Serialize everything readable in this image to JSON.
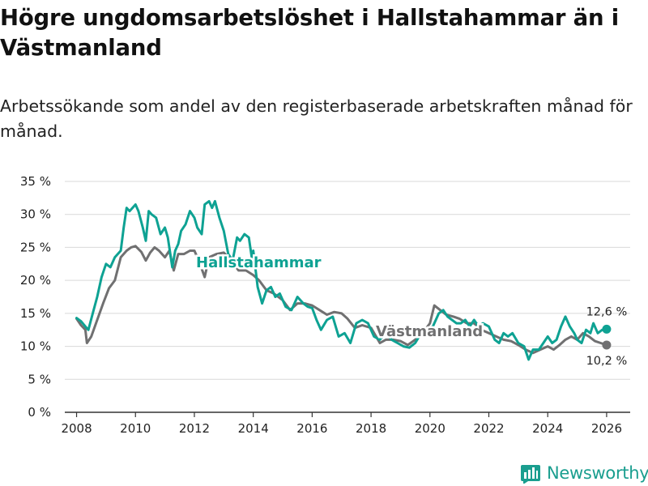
{
  "title": "Högre ungdomsarbetslöshet i Hallstahammar än i Västmanland",
  "subtitle": "Arbetssökande som andel av den registerbaserade arbetskraften månad för månad.",
  "logo": {
    "text": "Newsworthy",
    "icon": "bar-chart-logo-icon"
  },
  "colors": {
    "hallstahammar": "#0ea293",
    "vastmanland": "#707071",
    "grid": "#d9d9d9",
    "axis": "#333333"
  },
  "chart_data": {
    "type": "line",
    "title": "Högre ungdomsarbetslöshet i Hallstahammar än i Västmanland",
    "xlabel": "",
    "ylabel": "",
    "xlim": [
      2007.6,
      2026.8
    ],
    "ylim": [
      0,
      35
    ],
    "x_ticks": [
      2008,
      2010,
      2012,
      2014,
      2016,
      2018,
      2020,
      2022,
      2024,
      2026
    ],
    "x_tick_labels": [
      "2008",
      "2010",
      "2012",
      "2014",
      "2016",
      "2018",
      "2020",
      "2022",
      "2024",
      "2026"
    ],
    "y_ticks": [
      0,
      5,
      10,
      15,
      20,
      25,
      30,
      35
    ],
    "y_tick_labels": [
      "0 %",
      "5 %",
      "10 %",
      "15 %",
      "20 %",
      "25 %",
      "30 %",
      "35 %"
    ],
    "grid": true,
    "series": [
      {
        "name": "Västmanland",
        "label": "Västmanland",
        "end_label": "10,2 %",
        "x": [
          2008.0,
          2008.15,
          2008.3,
          2008.35,
          2008.5,
          2008.7,
          2008.9,
          2009.1,
          2009.3,
          2009.5,
          2009.7,
          2009.85,
          2010.0,
          2010.2,
          2010.35,
          2010.5,
          2010.65,
          2010.8,
          2011.0,
          2011.15,
          2011.3,
          2011.45,
          2011.65,
          2011.85,
          2012.0,
          2012.15,
          2012.35,
          2012.5,
          2012.75,
          2013.0,
          2013.25,
          2013.5,
          2013.75,
          2014.0,
          2014.2,
          2014.45,
          2014.7,
          2015.0,
          2015.25,
          2015.5,
          2015.75,
          2016.0,
          2016.25,
          2016.5,
          2016.75,
          2017.0,
          2017.2,
          2017.45,
          2017.7,
          2018.0,
          2018.3,
          2018.5,
          2018.75,
          2019.0,
          2019.25,
          2019.5,
          2019.75,
          2020.0,
          2020.15,
          2020.35,
          2020.55,
          2020.8,
          2021.0,
          2021.25,
          2021.5,
          2021.75,
          2022.0,
          2022.25,
          2022.5,
          2022.75,
          2023.0,
          2023.25,
          2023.5,
          2023.75,
          2024.0,
          2024.2,
          2024.4,
          2024.6,
          2024.8,
          2025.0,
          2025.2,
          2025.4,
          2025.6,
          2025.8,
          2026.0
        ],
        "values": [
          14.2,
          13.2,
          12.5,
          10.5,
          11.5,
          14.0,
          16.5,
          18.8,
          20.0,
          23.5,
          24.5,
          25.0,
          25.2,
          24.3,
          23.0,
          24.2,
          25.0,
          24.5,
          23.5,
          24.5,
          21.5,
          24.0,
          24.0,
          24.5,
          24.5,
          23.0,
          20.5,
          23.5,
          24.0,
          24.2,
          23.0,
          21.5,
          21.5,
          20.8,
          20.0,
          18.5,
          18.0,
          17.0,
          15.5,
          16.5,
          16.5,
          16.2,
          15.5,
          14.8,
          15.2,
          15.0,
          14.2,
          12.8,
          13.2,
          12.8,
          10.5,
          11.0,
          11.0,
          10.8,
          10.2,
          11.0,
          12.0,
          13.5,
          16.2,
          15.5,
          14.8,
          14.5,
          14.2,
          13.5,
          13.5,
          12.5,
          12.0,
          11.5,
          11.0,
          10.8,
          10.2,
          9.5,
          9.0,
          9.5,
          10.0,
          9.5,
          10.2,
          11.0,
          11.5,
          11.0,
          12.0,
          11.5,
          10.8,
          10.5,
          10.2
        ]
      },
      {
        "name": "Hallstahammar",
        "label": "Hallstahammar",
        "end_label": "12,6 %",
        "x": [
          2008.0,
          2008.15,
          2008.3,
          2008.4,
          2008.55,
          2008.7,
          2008.85,
          2009.0,
          2009.15,
          2009.3,
          2009.5,
          2009.6,
          2009.7,
          2009.8,
          2009.9,
          2010.0,
          2010.1,
          2010.25,
          2010.35,
          2010.45,
          2010.55,
          2010.7,
          2010.85,
          2011.0,
          2011.1,
          2011.25,
          2011.35,
          2011.45,
          2011.55,
          2011.7,
          2011.85,
          2012.0,
          2012.1,
          2012.25,
          2012.35,
          2012.5,
          2012.6,
          2012.7,
          2012.85,
          2013.0,
          2013.15,
          2013.3,
          2013.45,
          2013.55,
          2013.7,
          2013.85,
          2013.95,
          2014.0,
          2014.15,
          2014.3,
          2014.45,
          2014.6,
          2014.75,
          2014.9,
          2015.1,
          2015.3,
          2015.5,
          2015.7,
          2015.85,
          2016.0,
          2016.15,
          2016.3,
          2016.5,
          2016.7,
          2016.9,
          2017.1,
          2017.3,
          2017.5,
          2017.7,
          2017.9,
          2018.1,
          2018.3,
          2018.5,
          2018.7,
          2018.9,
          2019.1,
          2019.3,
          2019.5,
          2019.7,
          2019.9,
          2020.1,
          2020.3,
          2020.45,
          2020.6,
          2020.75,
          2020.9,
          2021.05,
          2021.2,
          2021.35,
          2021.5,
          2021.65,
          2021.8,
          2022.0,
          2022.2,
          2022.35,
          2022.5,
          2022.65,
          2022.8,
          2023.0,
          2023.2,
          2023.35,
          2023.5,
          2023.7,
          2023.85,
          2024.0,
          2024.15,
          2024.3,
          2024.45,
          2024.6,
          2024.75,
          2024.9,
          2025.0,
          2025.15,
          2025.3,
          2025.45,
          2025.55,
          2025.7,
          2025.85,
          2026.0
        ],
        "values": [
          14.3,
          13.8,
          13.0,
          12.5,
          15.0,
          17.5,
          20.5,
          22.5,
          22.0,
          23.5,
          24.5,
          28.0,
          31.0,
          30.5,
          31.0,
          31.5,
          30.5,
          28.0,
          26.0,
          30.5,
          30.0,
          29.5,
          27.0,
          28.0,
          26.5,
          22.0,
          24.5,
          25.5,
          27.5,
          28.5,
          30.5,
          29.5,
          28.0,
          27.0,
          31.5,
          32.0,
          31.0,
          32.0,
          29.5,
          27.5,
          24.0,
          23.0,
          26.5,
          26.0,
          27.0,
          26.5,
          23.5,
          24.5,
          19.0,
          16.5,
          18.5,
          19.0,
          17.5,
          18.0,
          16.0,
          15.5,
          17.5,
          16.5,
          16.0,
          15.8,
          14.0,
          12.5,
          14.0,
          14.5,
          11.5,
          12.0,
          10.5,
          13.5,
          14.0,
          13.5,
          11.5,
          11.0,
          12.0,
          11.0,
          10.5,
          10.0,
          9.8,
          10.5,
          12.0,
          12.5,
          13.0,
          15.0,
          15.5,
          14.5,
          14.0,
          13.5,
          13.5,
          14.0,
          13.0,
          14.0,
          13.0,
          13.5,
          13.0,
          11.0,
          10.5,
          12.0,
          11.5,
          12.0,
          10.5,
          10.0,
          8.0,
          9.5,
          9.5,
          10.5,
          11.5,
          10.5,
          11.0,
          13.0,
          14.5,
          13.0,
          12.0,
          11.0,
          10.5,
          12.5,
          12.0,
          13.5,
          12.0,
          12.5,
          12.6
        ]
      }
    ]
  }
}
